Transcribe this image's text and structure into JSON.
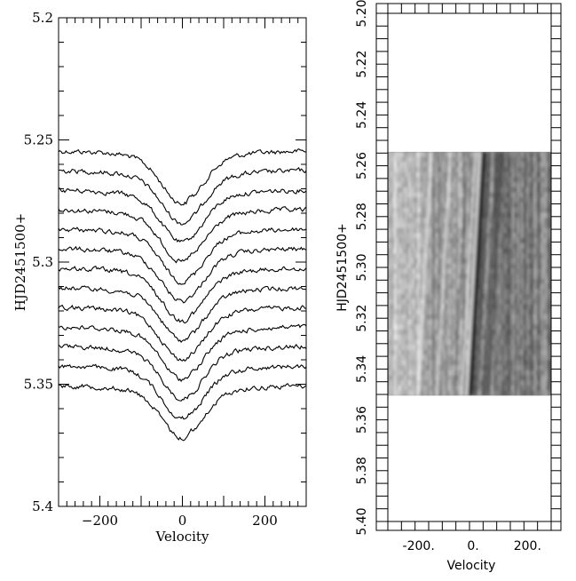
{
  "chart_data": [
    {
      "type": "line",
      "xlabel": "Velocity",
      "ylabel": "HJD2451500+",
      "xlim": [
        -300,
        300
      ],
      "ylim": [
        5.2,
        5.4
      ],
      "y_inverted": true,
      "x_ticks": [
        -200,
        0,
        200
      ],
      "x_tick_labels": [
        "−200",
        "0",
        "200"
      ],
      "y_ticks": [
        5.2,
        5.25,
        5.3,
        5.35,
        5.4
      ],
      "y_tick_labels": [
        "5.2",
        "5.25",
        "5.3",
        "5.35",
        "5.4"
      ],
      "line_color": "#000000",
      "profile_baselines": [
        5.2545,
        5.2625,
        5.2705,
        5.2785,
        5.2865,
        5.2945,
        5.3025,
        5.3105,
        5.3185,
        5.3265,
        5.3345,
        5.3425,
        5.3505
      ],
      "profile_center_velocity": 0,
      "profile_depth": 0.0215,
      "profile_halfwidth_velocity": 65
    },
    {
      "type": "heatmap",
      "xlabel": "Velocity",
      "ylabel": "HJD2451500+",
      "xlim": [
        -300,
        300
      ],
      "ylim": [
        5.2,
        5.4
      ],
      "y_inverted": true,
      "x_tick_labels": [
        "-200.",
        "0.",
        "200."
      ],
      "y_tick_labels": [
        "5.20",
        "5.22",
        "5.24",
        "5.26",
        "5.28",
        "5.30",
        "5.32",
        "5.34",
        "5.36",
        "5.38",
        "5.40"
      ],
      "data_range_y": [
        5.2545,
        5.3505
      ],
      "colormap": "grayscale",
      "dark_feature": {
        "velocity_start": 50,
        "velocity_end": 0,
        "hjd_start": 5.2545,
        "hjd_end": 5.3505
      }
    }
  ]
}
